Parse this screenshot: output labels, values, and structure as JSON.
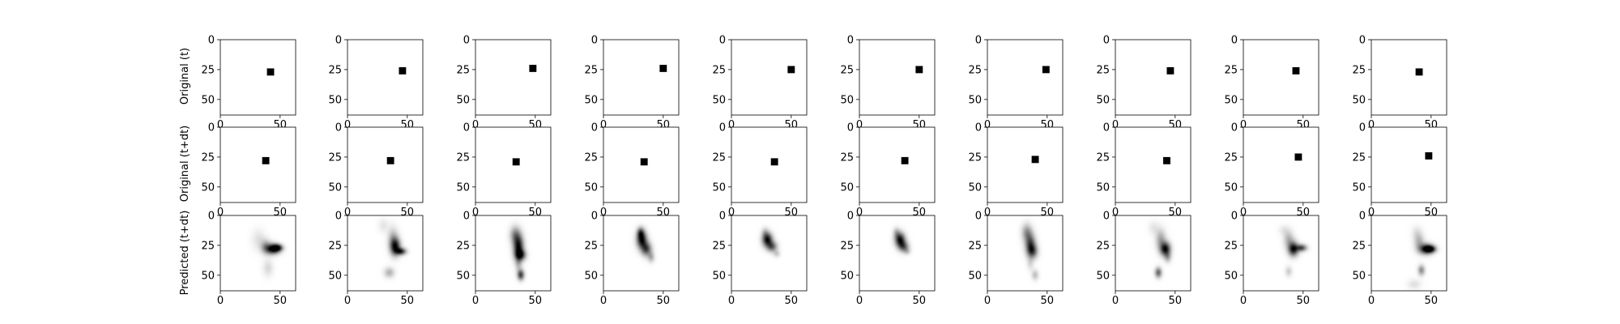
{
  "figure": {
    "row_labels": [
      "Original (t)",
      "Original (t+dt)",
      "Predicted (t+dt)"
    ]
  },
  "chart_data": {
    "type": "heatmap",
    "grid": false,
    "colormap": "Greys",
    "image_size": [
      64,
      64
    ],
    "xlim": [
      0,
      63
    ],
    "ylim": [
      63,
      0
    ],
    "xticks": [
      0,
      50
    ],
    "yticks": [
      0,
      25,
      50
    ],
    "rows": [
      {
        "label": "Original (t)",
        "kind": "square",
        "square_size": 6,
        "centers": [
          [
            42,
            27
          ],
          [
            46,
            26
          ],
          [
            48,
            24
          ],
          [
            50,
            24
          ],
          [
            50,
            25
          ],
          [
            50,
            25
          ],
          [
            49,
            25
          ],
          [
            46,
            26
          ],
          [
            44,
            26
          ],
          [
            40,
            27
          ]
        ]
      },
      {
        "label": "Original (t+dt)",
        "kind": "square",
        "square_size": 6,
        "centers": [
          [
            38,
            28
          ],
          [
            36,
            28
          ],
          [
            34,
            29
          ],
          [
            34,
            29
          ],
          [
            36,
            29
          ],
          [
            38,
            28
          ],
          [
            40,
            27
          ],
          [
            43,
            28
          ],
          [
            46,
            25
          ],
          [
            48,
            24
          ]
        ]
      },
      {
        "label": "Predicted (t+dt)",
        "kind": "blobs",
        "blobs": [
          [
            [
              44,
              28,
              4,
              3,
              0.95
            ],
            [
              48,
              27,
              3,
              2,
              0.85
            ],
            [
              38,
              26,
              3,
              4,
              0.35
            ],
            [
              32,
              20,
              4,
              6,
              0.12
            ],
            [
              40,
              44,
              3,
              5,
              0.15
            ]
          ],
          [
            [
              40,
              26,
              3,
              5,
              0.95
            ],
            [
              45,
              30,
              3,
              2,
              0.8
            ],
            [
              38,
              18,
              3,
              6,
              0.25
            ],
            [
              35,
              48,
              3,
              3,
              0.3
            ],
            [
              30,
              8,
              3,
              4,
              0.1
            ]
          ],
          [
            [
              36,
              26,
              3,
              7,
              0.95
            ],
            [
              38,
              33,
              3,
              3,
              0.7
            ],
            [
              38,
              50,
              2,
              3,
              0.75
            ],
            [
              33,
              16,
              3,
              5,
              0.4
            ],
            [
              36,
              40,
              2,
              5,
              0.25
            ]
          ],
          [
            [
              32,
              20,
              3,
              5,
              0.95
            ],
            [
              36,
              28,
              3,
              4,
              0.7
            ],
            [
              31,
              14,
              2,
              3,
              0.5
            ],
            [
              40,
              35,
              2,
              3,
              0.3
            ]
          ],
          [
            [
              30,
              20,
              3,
              4,
              0.95
            ],
            [
              34,
              26,
              3,
              3,
              0.6
            ],
            [
              28,
              14,
              2,
              3,
              0.2
            ],
            [
              38,
              32,
              2,
              2,
              0.2
            ]
          ],
          [
            [
              34,
              20,
              3,
              4,
              0.95
            ],
            [
              37,
              26,
              3,
              3,
              0.6
            ],
            [
              31,
              14,
              2,
              3,
              0.25
            ],
            [
              40,
              30,
              2,
              2,
              0.2
            ]
          ],
          [
            [
              36,
              24,
              3,
              6,
              0.7
            ],
            [
              38,
              30,
              3,
              4,
              0.55
            ],
            [
              33,
              14,
              3,
              5,
              0.4
            ],
            [
              40,
              50,
              2,
              3,
              0.25
            ],
            [
              36,
              40,
              2,
              4,
              0.15
            ]
          ],
          [
            [
              42,
              28,
              3,
              4,
              0.95
            ],
            [
              38,
              20,
              3,
              6,
              0.35
            ],
            [
              36,
              48,
              2,
              3,
              0.6
            ],
            [
              44,
              35,
              2,
              3,
              0.3
            ],
            [
              32,
              10,
              3,
              4,
              0.1
            ]
          ],
          [
            [
              42,
              28,
              3,
              4,
              0.95
            ],
            [
              49,
              27,
              3,
              2,
              0.7
            ],
            [
              38,
              20,
              3,
              5,
              0.3
            ],
            [
              38,
              47,
              2,
              3,
              0.2
            ],
            [
              34,
              12,
              3,
              3,
              0.1
            ]
          ],
          [
            [
              46,
              28,
              4,
              3,
              0.95
            ],
            [
              50,
              28,
              3,
              2,
              0.8
            ],
            [
              40,
              22,
              3,
              5,
              0.3
            ],
            [
              42,
              46,
              2,
              3,
              0.45
            ],
            [
              36,
              58,
              4,
              3,
              0.12
            ],
            [
              38,
              14,
              3,
              4,
              0.1
            ]
          ]
        ]
      }
    ]
  }
}
